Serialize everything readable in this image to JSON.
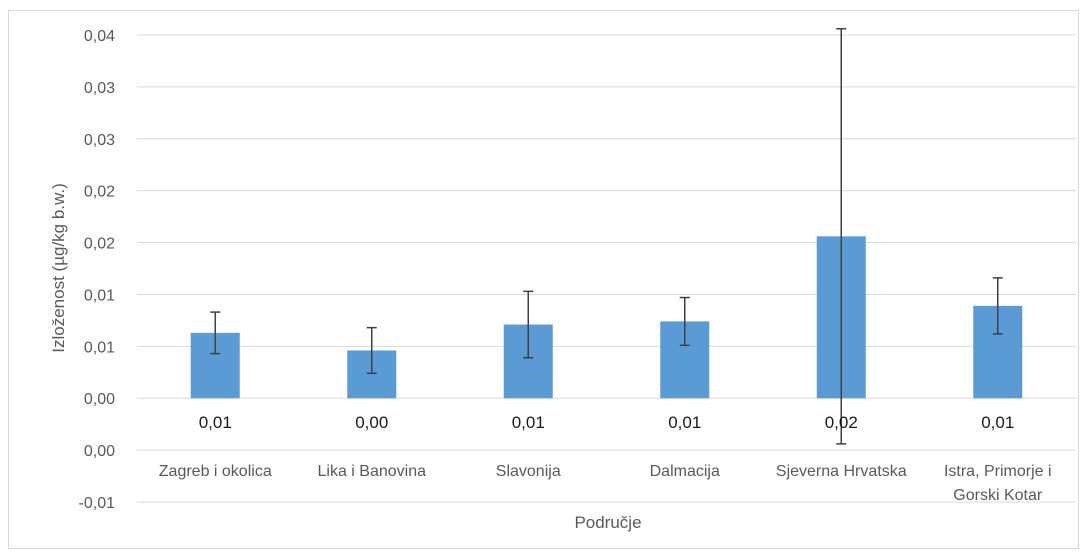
{
  "chart_data": {
    "type": "bar",
    "title": "",
    "xlabel": "Područje",
    "ylabel": "Izloženost (µg/kg b.w.)",
    "ylim": [
      -0.01,
      0.035
    ],
    "yticks": [
      -0.01,
      -0.005,
      0.0,
      0.005,
      0.01,
      0.015,
      0.02,
      0.025,
      0.03,
      0.035
    ],
    "ytick_labels": [
      "-0,01",
      "0,00",
      "0,00",
      "0,01",
      "0,01",
      "0,02",
      "0,02",
      "0,03",
      "0,03",
      "0,04"
    ],
    "categories": [
      [
        "Zagreb i okolica"
      ],
      [
        "Lika i Banovina"
      ],
      [
        "Slavonija"
      ],
      [
        "Dalmacija"
      ],
      [
        "Sjeverna Hrvatska"
      ],
      [
        "Istra, Primorje i",
        "Gorski Kotar"
      ]
    ],
    "values": [
      0.0063,
      0.0046,
      0.0071,
      0.0074,
      0.0156,
      0.0089
    ],
    "error": [
      0.002,
      0.0022,
      0.0032,
      0.0023,
      0.02,
      0.0027
    ],
    "data_labels": [
      "0,01",
      "0,00",
      "0,01",
      "0,01",
      "0,02",
      "0,01"
    ],
    "bar_color": "#5b9bd5",
    "error_color": "#404040",
    "grid_color": "#d9d9d9",
    "grid": true,
    "legend": "none"
  }
}
